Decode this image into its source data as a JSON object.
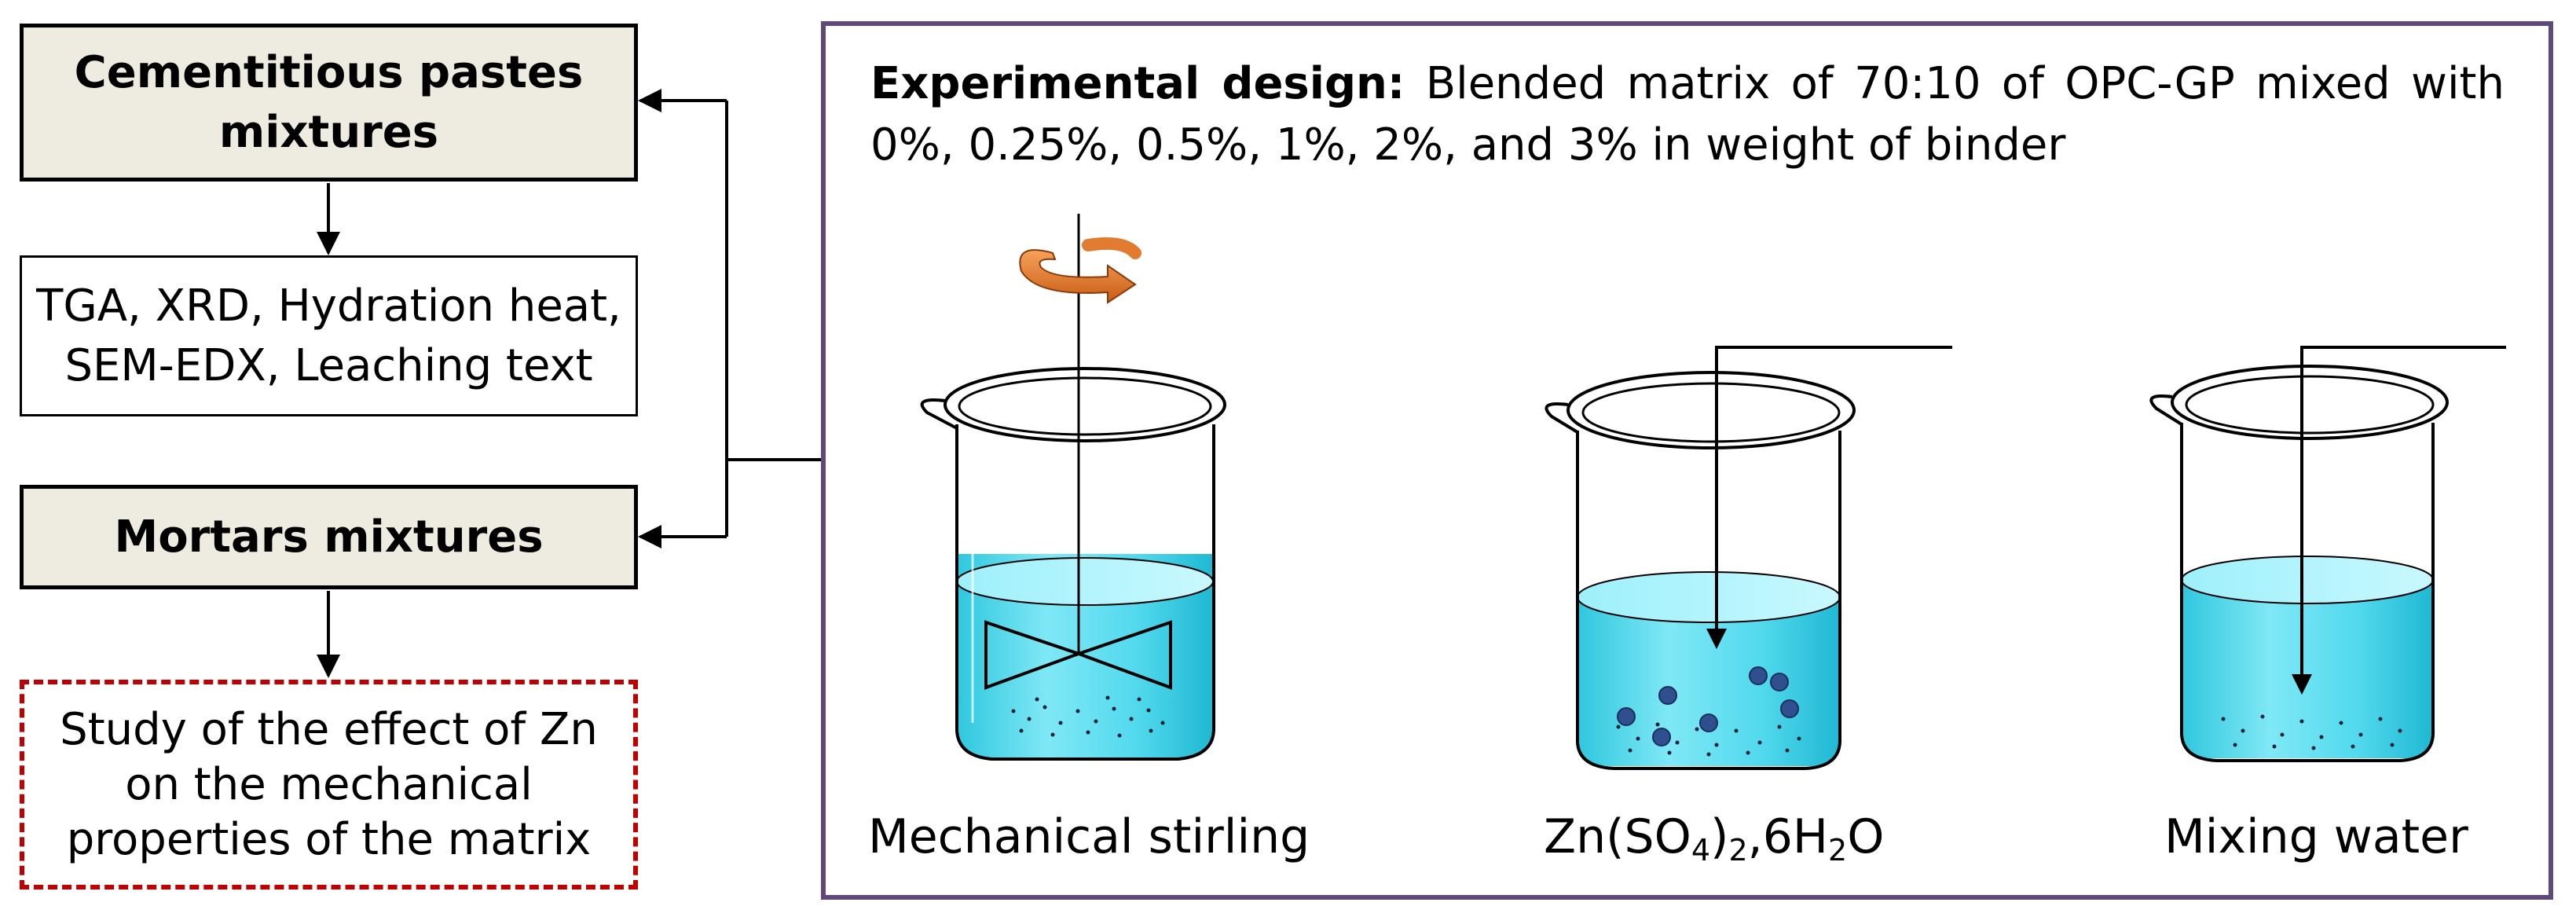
{
  "left": {
    "pastes_box": {
      "line1": "Cementitious pastes",
      "line2": "mixtures"
    },
    "tests_box": {
      "line1": "TGA, XRD, Hydration heat,",
      "line2": "SEM-EDX, Leaching text"
    },
    "mortars_box": {
      "label": "Mortars mixtures"
    },
    "study_box": {
      "line1": "Study of the effect of Zn",
      "line2": "on the mechanical",
      "line3": "properties of the matrix"
    }
  },
  "panel": {
    "design_heading": "Experimental design:",
    "design_text": "Blended matrix of 70:10 of OPC-GP mixed with 0%, 0.25%, 0.5%, 1%, 2%, and 3% in weight of binder",
    "beakers": [
      {
        "label": "Mechanical stirling"
      },
      {
        "label_parts": [
          "Zn(SO",
          "4",
          ")",
          "2",
          ",6H",
          "2",
          "O"
        ]
      },
      {
        "label": "Mixing water"
      }
    ]
  },
  "colors": {
    "head_fill": "#eeece1",
    "dashed_border": "#c00000",
    "panel_border": "#5f497a",
    "liquid": "#4dd9ec",
    "rotation_arrow": "#e07b30",
    "particles": "#2f4f8f"
  },
  "icons": [
    "rotation-arrow-icon",
    "stirrer-icon",
    "beaker-icon",
    "particle-icon"
  ]
}
